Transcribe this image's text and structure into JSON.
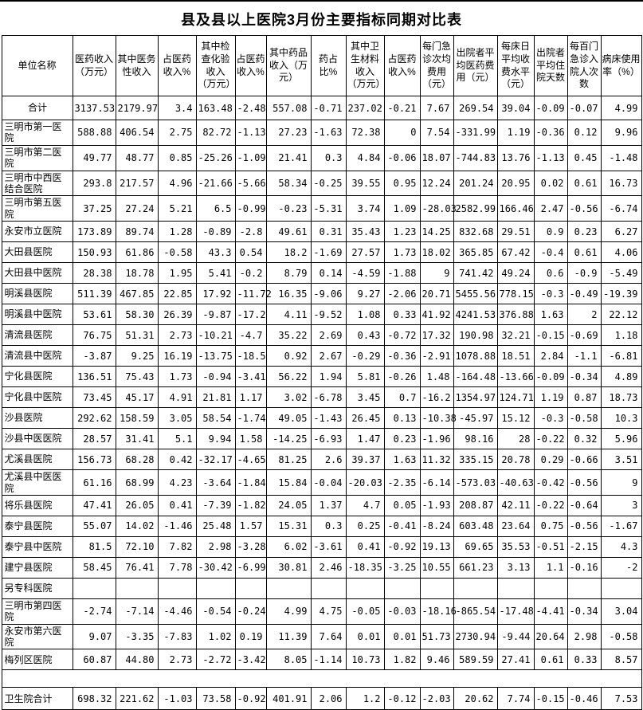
{
  "title": "县及县以上医院3月份主要指标同期对比表",
  "columns": [
    "单位名称",
    "医药收入（万元）",
    "其中医务性收入",
    "占医药收入%",
    "其中检查化验收入（万元）",
    "占医药收入%",
    "其中药品收入（万元）",
    "药占比%",
    "其中卫生材料收入（万元）",
    "占医药收入%",
    "每门急诊次均费用（元）",
    "出院者平均医药费用（元）",
    "每床日平均收费水平（元）",
    "出院者平均住院天数",
    "每百门急诊入院人次数",
    "病床使用率（%）"
  ],
  "rows": [
    {
      "name": "合计",
      "values": [
        "3137.53",
        "2179.97",
        "3.4",
        "163.48",
        "-2.48",
        "557.08",
        "-0.71",
        "237.02",
        "-0.21",
        "7.67",
        "269.54",
        "39.04",
        "-0.09",
        "-0.07",
        "4.99"
      ]
    },
    {
      "name": "三明市第一医院",
      "values": [
        "588.88",
        "406.54",
        "2.75",
        "82.72",
        "-1.13",
        "27.23",
        "-1.63",
        "72.38",
        "0",
        "7.54",
        "-331.99",
        "1.19",
        "-0.36",
        "0.12",
        "9.96"
      ]
    },
    {
      "name": "三明市第二医院",
      "values": [
        "49.77",
        "48.77",
        "0.85",
        "-25.26",
        "-1.09",
        "21.41",
        "0.3",
        "4.84",
        "-0.06",
        "18.07",
        "-744.83",
        "13.76",
        "-1.13",
        "0.45",
        "-1.48"
      ]
    },
    {
      "name": "三明市中西医结合医院",
      "values": [
        "293.8",
        "217.57",
        "4.96",
        "-21.66",
        "-5.66",
        "58.34",
        "-0.25",
        "39.55",
        "0.95",
        "12.24",
        "201.24",
        "20.95",
        "0.02",
        "0.61",
        "16.73"
      ]
    },
    {
      "name": "三明市第五医院",
      "values": [
        "37.25",
        "27.24",
        "5.21",
        "6.5",
        "-0.99",
        "-0.23",
        "-5.31",
        "3.74",
        "1.09",
        "-28.03",
        "2582.99",
        "166.46",
        "2.47",
        "-0.56",
        "-6.74"
      ]
    },
    {
      "name": "永安市立医院",
      "values": [
        "173.89",
        "89.74",
        "1.28",
        "-0.89",
        "-2.8",
        "49.61",
        "0.31",
        "35.43",
        "1.23",
        "14.25",
        "832.68",
        "29.51",
        "0.9",
        "0.23",
        "6.27"
      ]
    },
    {
      "name": "大田县医院",
      "values": [
        "150.93",
        "61.86",
        "-0.58",
        "43.3",
        "0.54",
        "18.2",
        "-1.69",
        "27.57",
        "1.73",
        "18.02",
        "365.85",
        "67.42",
        "-0.4",
        "0.61",
        "4.06"
      ]
    },
    {
      "name": "大田县中医院",
      "values": [
        "28.38",
        "18.78",
        "1.95",
        "5.41",
        "-0.2",
        "8.79",
        "0.14",
        "-4.59",
        "-1.88",
        "9",
        "741.42",
        "49.24",
        "0.6",
        "-0.9",
        "-5.49"
      ]
    },
    {
      "name": "明溪县医院",
      "values": [
        "511.39",
        "467.85",
        "22.85",
        "17.92",
        "-11.72",
        "16.35",
        "-9.06",
        "9.27",
        "-2.06",
        "20.71",
        "5455.56",
        "778.15",
        "-0.3",
        "-0.49",
        "-19.39"
      ]
    },
    {
      "name": "明溪县中医院",
      "values": [
        "53.61",
        "58.30",
        "26.39",
        "-9.87",
        "-17.2",
        "4.11",
        "-9.52",
        "1.08",
        "0.33",
        "41.92",
        "4241.53",
        "376.88",
        "1.63",
        "2",
        "22.12"
      ]
    },
    {
      "name": "清流县医院",
      "values": [
        "76.75",
        "51.31",
        "2.73",
        "-10.21",
        "-4.7",
        "35.22",
        "2.69",
        "0.43",
        "-0.72",
        "17.32",
        "190.98",
        "32.21",
        "-0.15",
        "-0.69",
        "1.18"
      ]
    },
    {
      "name": "清流县中医院",
      "values": [
        "-3.87",
        "9.25",
        "16.19",
        "-13.75",
        "-18.5",
        "0.92",
        "2.67",
        "-0.29",
        "-0.36",
        "-2.91",
        "1078.88",
        "18.51",
        "2.84",
        "-1.1",
        "-6.81"
      ]
    },
    {
      "name": "宁化县医院",
      "values": [
        "136.51",
        "75.43",
        "1.73",
        "-0.94",
        "-3.41",
        "56.22",
        "1.94",
        "5.81",
        "-0.26",
        "1.48",
        "-164.48",
        "-13.66",
        "-0.09",
        "-0.34",
        "4.89"
      ]
    },
    {
      "name": "宁化县中医院",
      "values": [
        "73.45",
        "45.17",
        "4.91",
        "21.81",
        "1.17",
        "3.02",
        "-6.78",
        "3.45",
        "0.7",
        "-16.2",
        "1354.97",
        "124.71",
        "1.19",
        "0.87",
        "18.73"
      ]
    },
    {
      "name": "沙县医院",
      "values": [
        "292.62",
        "158.59",
        "3.05",
        "58.54",
        "-1.74",
        "49.05",
        "-1.43",
        "26.45",
        "0.13",
        "-10.38",
        "-45.97",
        "15.12",
        "-0.3",
        "-0.58",
        "10.3"
      ]
    },
    {
      "name": "沙县中医医院",
      "values": [
        "28.57",
        "31.41",
        "5.1",
        "9.94",
        "1.58",
        "-14.25",
        "-6.93",
        "1.47",
        "0.23",
        "-1.96",
        "98.16",
        "28",
        "-0.22",
        "0.32",
        "5.96"
      ]
    },
    {
      "name": "尤溪县医院",
      "values": [
        "156.73",
        "68.28",
        "0.42",
        "-32.17",
        "-4.65",
        "81.25",
        "2.6",
        "39.37",
        "1.63",
        "11.32",
        "335.15",
        "20.78",
        "0.29",
        "-0.66",
        "3.51"
      ]
    },
    {
      "name": "尤溪县中医医院",
      "values": [
        "61.16",
        "68.99",
        "4.23",
        "-3.64",
        "-1.84",
        "15.84",
        "-0.04",
        "-20.03",
        "-2.35",
        "-6.14",
        "-573.03",
        "-40.63",
        "-0.42",
        "-0.56",
        "9"
      ]
    },
    {
      "name": "将乐县医院",
      "values": [
        "47.41",
        "26.05",
        "0.41",
        "-7.39",
        "-1.82",
        "24.05",
        "1.37",
        "4.7",
        "0.05",
        "-1.93",
        "208.87",
        "42.11",
        "-0.22",
        "-0.64",
        "3"
      ]
    },
    {
      "name": "泰宁县医院",
      "values": [
        "55.07",
        "14.02",
        "-1.46",
        "25.48",
        "1.57",
        "15.31",
        "0.3",
        "0.25",
        "-0.41",
        "-8.24",
        "603.48",
        "23.64",
        "0.75",
        "-0.56",
        "-1.67"
      ]
    },
    {
      "name": "泰宁县中医院",
      "values": [
        "81.5",
        "72.10",
        "7.82",
        "2.98",
        "-3.28",
        "6.02",
        "-3.61",
        "0.41",
        "-0.92",
        "19.13",
        "69.65",
        "35.53",
        "-0.51",
        "-2.15",
        "4.3"
      ]
    },
    {
      "name": "建宁县医院",
      "values": [
        "58.45",
        "76.41",
        "7.78",
        "-30.42",
        "-6.99",
        "30.81",
        "2.46",
        "-18.35",
        "-3.25",
        "10.55",
        "661.23",
        "3.13",
        "1.1",
        "-0.16",
        "-2"
      ]
    },
    {
      "name": "另专科医院",
      "values": [
        "",
        "",
        "",
        "",
        "",
        "",
        "",
        "",
        "",
        "",
        "",
        "",
        "",
        "",
        ""
      ]
    },
    {
      "name": "三明市第四医院",
      "values": [
        "-2.74",
        "-7.14",
        "-4.46",
        "-0.54",
        "-0.24",
        "4.99",
        "4.75",
        "-0.05",
        "-0.03",
        "-18.16",
        "-865.54",
        "-17.48",
        "-4.41",
        "-0.34",
        "3.04"
      ]
    },
    {
      "name": "永安市第六医院",
      "values": [
        "9.07",
        "-3.35",
        "-7.83",
        "1.02",
        "0.19",
        "11.39",
        "7.64",
        "0.01",
        "0.01",
        "51.73",
        "2730.94",
        "-9.44",
        "20.64",
        "2.98",
        "-0.58"
      ]
    },
    {
      "name": "梅列区医院",
      "values": [
        "60.87",
        "44.80",
        "2.73",
        "-2.72",
        "-3.42",
        "8.05",
        "-1.14",
        "10.73",
        "1.82",
        "9.46",
        "589.59",
        "27.41",
        "0.61",
        "0.33",
        "8.57"
      ]
    },
    {
      "name": "",
      "spacer": true,
      "values": []
    },
    {
      "name": "卫生院合计",
      "values": [
        "698.32",
        "221.62",
        "-1.03",
        "73.58",
        "-0.92",
        "401.91",
        "2.06",
        "1.2",
        "-0.12",
        "-2.03",
        "20.62",
        "7.74",
        "-0.15",
        "-0.46",
        "7.53"
      ]
    }
  ]
}
